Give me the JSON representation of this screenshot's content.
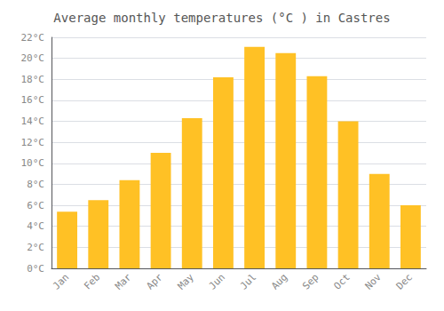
{
  "chart_data": {
    "type": "bar",
    "title": "Average monthly temperatures (°C ) in Castres",
    "categories": [
      "Jan",
      "Feb",
      "Mar",
      "Apr",
      "May",
      "Jun",
      "Jul",
      "Aug",
      "Sep",
      "Oct",
      "Nov",
      "Dec"
    ],
    "values": [
      5.4,
      6.5,
      8.4,
      11.0,
      14.3,
      18.2,
      21.1,
      20.5,
      18.3,
      14.0,
      9.0,
      6.0
    ],
    "color": "#FFC125",
    "ylim": [
      0,
      22
    ],
    "yticks": [
      {
        "value": 0,
        "label": "0°C"
      },
      {
        "value": 2,
        "label": "2°C"
      },
      {
        "value": 4,
        "label": "4°C"
      },
      {
        "value": 6,
        "label": "6°C"
      },
      {
        "value": 8,
        "label": "8°C"
      },
      {
        "value": 10,
        "label": "10°C"
      },
      {
        "value": 12,
        "label": "12°C"
      },
      {
        "value": 14,
        "label": "14°C"
      },
      {
        "value": 16,
        "label": "16°C"
      },
      {
        "value": 18,
        "label": "18°C"
      },
      {
        "value": 20,
        "label": "20°C"
      },
      {
        "value": 22,
        "label": "22°C"
      }
    ],
    "grid": true
  }
}
